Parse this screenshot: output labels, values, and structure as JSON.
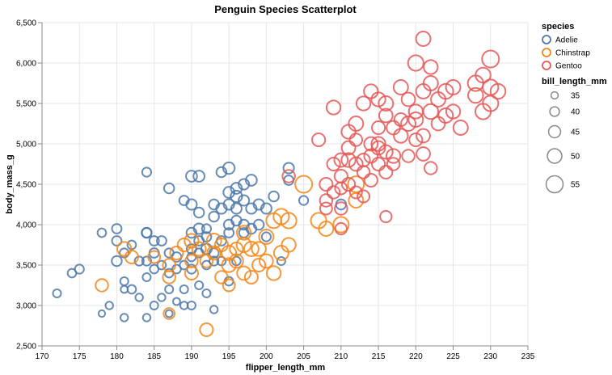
{
  "chart_data": {
    "type": "scatter",
    "title": "Penguin Species Scatterplot",
    "xlabel": "flipper_length_mm",
    "ylabel": "body_mass_g",
    "xlim": [
      170,
      235
    ],
    "ylim": [
      2500,
      6500
    ],
    "x_ticks": [
      170,
      175,
      180,
      185,
      190,
      195,
      200,
      205,
      210,
      215,
      220,
      225,
      230,
      235
    ],
    "y_ticks": [
      2500,
      3000,
      3500,
      4000,
      4500,
      5000,
      5500,
      6000,
      6500
    ],
    "y_tick_labels": [
      "2,500",
      "3,000",
      "3,500",
      "4,000",
      "4,500",
      "5,000",
      "5,500",
      "6,000",
      "6,500"
    ],
    "grid": true,
    "legend": {
      "placement": "right",
      "color_title": "species",
      "size_title": "bill_length_mm",
      "size_values": [
        35,
        40,
        45,
        50,
        55
      ]
    },
    "size_domain": [
      32,
      60
    ],
    "series": [
      {
        "name": "Adelie",
        "color": "#4c78a8",
        "points": [
          [
            172,
            3150,
            37
          ],
          [
            174,
            3400,
            38
          ],
          [
            175,
            3450,
            39
          ],
          [
            178,
            3900,
            38
          ],
          [
            178,
            2900,
            34
          ],
          [
            179,
            3000,
            36
          ],
          [
            180,
            3950,
            40
          ],
          [
            180,
            3550,
            41
          ],
          [
            180,
            3800,
            40
          ],
          [
            181,
            3650,
            39
          ],
          [
            181,
            3300,
            37
          ],
          [
            181,
            3200,
            35
          ],
          [
            181,
            2850,
            36
          ],
          [
            182,
            3750,
            38
          ],
          [
            182,
            3200,
            38
          ],
          [
            183,
            3550,
            39
          ],
          [
            183,
            3100,
            36
          ],
          [
            184,
            3900,
            40
          ],
          [
            184,
            3900,
            41
          ],
          [
            184,
            4650,
            39
          ],
          [
            184,
            3550,
            39
          ],
          [
            184,
            3350,
            37
          ],
          [
            184,
            2850,
            36
          ],
          [
            185,
            3800,
            40
          ],
          [
            185,
            3650,
            40
          ],
          [
            185,
            3450,
            38
          ],
          [
            185,
            3000,
            37
          ],
          [
            186,
            3800,
            40
          ],
          [
            186,
            3500,
            38
          ],
          [
            186,
            3100,
            36
          ],
          [
            187,
            3650,
            39
          ],
          [
            187,
            4450,
            41
          ],
          [
            187,
            3400,
            38
          ],
          [
            187,
            3200,
            37
          ],
          [
            187,
            2900,
            35
          ],
          [
            188,
            3600,
            40
          ],
          [
            188,
            3450,
            38
          ],
          [
            188,
            3050,
            35
          ],
          [
            189,
            3500,
            38
          ],
          [
            189,
            3200,
            37
          ],
          [
            189,
            3000,
            36
          ],
          [
            189,
            4300,
            40
          ],
          [
            190,
            3900,
            41
          ],
          [
            190,
            3700,
            40
          ],
          [
            190,
            3450,
            39
          ],
          [
            190,
            4600,
            43
          ],
          [
            190,
            4250,
            42
          ],
          [
            190,
            3600,
            38
          ],
          [
            190,
            3000,
            37
          ],
          [
            191,
            3800,
            40
          ],
          [
            191,
            3950,
            42
          ],
          [
            191,
            3650,
            39
          ],
          [
            191,
            3250,
            37
          ],
          [
            191,
            4150,
            41
          ],
          [
            191,
            4600,
            43
          ],
          [
            192,
            3950,
            39
          ],
          [
            192,
            3850,
            40
          ],
          [
            192,
            3500,
            38
          ],
          [
            192,
            3150,
            37
          ],
          [
            192,
            3700,
            42
          ],
          [
            193,
            3550,
            39
          ],
          [
            193,
            3650,
            40
          ],
          [
            193,
            2950,
            36
          ],
          [
            193,
            4100,
            41
          ],
          [
            193,
            4250,
            41
          ],
          [
            194,
            4200,
            42
          ],
          [
            194,
            3800,
            40
          ],
          [
            194,
            3550,
            38
          ],
          [
            194,
            4650,
            41
          ],
          [
            195,
            4400,
            43
          ],
          [
            195,
            4000,
            41
          ],
          [
            195,
            3300,
            38
          ],
          [
            195,
            4700,
            44
          ],
          [
            195,
            4250,
            42
          ],
          [
            195,
            3900,
            40
          ],
          [
            196,
            4350,
            44
          ],
          [
            196,
            4450,
            43
          ],
          [
            196,
            4050,
            41
          ],
          [
            196,
            3550,
            38
          ],
          [
            196,
            4200,
            42
          ],
          [
            197,
            4300,
            42
          ],
          [
            197,
            3900,
            40
          ],
          [
            197,
            4500,
            42
          ],
          [
            197,
            4000,
            41
          ],
          [
            198,
            3950,
            41
          ],
          [
            198,
            4550,
            43
          ],
          [
            198,
            4200,
            42
          ],
          [
            199,
            4000,
            41
          ],
          [
            199,
            4250,
            42
          ],
          [
            200,
            4200,
            42
          ],
          [
            200,
            3850,
            39
          ],
          [
            201,
            4350,
            41
          ],
          [
            202,
            3550,
            37
          ],
          [
            203,
            4700,
            42
          ],
          [
            203,
            4550,
            40
          ],
          [
            205,
            4300,
            39
          ],
          [
            210,
            4250,
            41
          ]
        ]
      },
      {
        "name": "Chinstrap",
        "color": "#f58518",
        "points": [
          [
            178,
            3250,
            46
          ],
          [
            181,
            3700,
            49
          ],
          [
            182,
            3600,
            47
          ],
          [
            185,
            3600,
            45
          ],
          [
            187,
            3500,
            46
          ],
          [
            187,
            2900,
            43
          ],
          [
            187,
            3350,
            46
          ],
          [
            188,
            3650,
            47
          ],
          [
            189,
            3750,
            47
          ],
          [
            190,
            3400,
            47
          ],
          [
            190,
            3800,
            49
          ],
          [
            190,
            3550,
            46
          ],
          [
            191,
            3700,
            48
          ],
          [
            192,
            2700,
            47
          ],
          [
            192,
            3550,
            46
          ],
          [
            193,
            3800,
            50
          ],
          [
            193,
            3650,
            48
          ],
          [
            194,
            3750,
            47
          ],
          [
            194,
            3350,
            46
          ],
          [
            195,
            3650,
            50
          ],
          [
            195,
            3500,
            49
          ],
          [
            195,
            3250,
            45
          ],
          [
            196,
            3550,
            48
          ],
          [
            196,
            3700,
            47
          ],
          [
            197,
            3750,
            50
          ],
          [
            197,
            3400,
            48
          ],
          [
            197,
            3900,
            49
          ],
          [
            198,
            3700,
            50
          ],
          [
            198,
            3350,
            47
          ],
          [
            199,
            3700,
            49
          ],
          [
            199,
            3500,
            47
          ],
          [
            200,
            3850,
            50
          ],
          [
            200,
            3550,
            48
          ],
          [
            201,
            4050,
            51
          ],
          [
            201,
            3400,
            49
          ],
          [
            202,
            3650,
            50
          ],
          [
            202,
            4100,
            52
          ],
          [
            203,
            4050,
            52
          ],
          [
            203,
            3750,
            49
          ],
          [
            205,
            4500,
            55
          ],
          [
            207,
            4050,
            52
          ],
          [
            208,
            3950,
            50
          ],
          [
            210,
            4000,
            52
          ],
          [
            212,
            4300,
            50
          ],
          [
            212,
            4500,
            53
          ]
        ]
      },
      {
        "name": "Gentoo",
        "color": "#e45756",
        "points": [
          [
            203,
            4600,
            46
          ],
          [
            207,
            5050,
            47
          ],
          [
            208,
            4500,
            47
          ],
          [
            208,
            4300,
            46
          ],
          [
            208,
            4200,
            45
          ],
          [
            209,
            5450,
            49
          ],
          [
            209,
            4400,
            46
          ],
          [
            209,
            4750,
            47
          ],
          [
            210,
            4800,
            48
          ],
          [
            210,
            4600,
            47
          ],
          [
            210,
            4200,
            46
          ],
          [
            210,
            4450,
            45
          ],
          [
            210,
            3950,
            44
          ],
          [
            211,
            4500,
            47
          ],
          [
            211,
            4800,
            49
          ],
          [
            211,
            4950,
            48
          ],
          [
            211,
            5150,
            49
          ],
          [
            212,
            4750,
            48
          ],
          [
            212,
            4400,
            45
          ],
          [
            212,
            5050,
            46
          ],
          [
            212,
            5250,
            50
          ],
          [
            213,
            4800,
            47
          ],
          [
            213,
            4650,
            46
          ],
          [
            213,
            5500,
            49
          ],
          [
            213,
            4350,
            45
          ],
          [
            214,
            4850,
            48
          ],
          [
            214,
            5000,
            48
          ],
          [
            214,
            4550,
            47
          ],
          [
            214,
            5650,
            49
          ],
          [
            215,
            4750,
            47
          ],
          [
            215,
            5000,
            49
          ],
          [
            215,
            5200,
            47
          ],
          [
            215,
            5550,
            49
          ],
          [
            215,
            4950,
            48
          ],
          [
            216,
            4650,
            47
          ],
          [
            216,
            5500,
            50
          ],
          [
            216,
            4100,
            44
          ],
          [
            216,
            5350,
            48
          ],
          [
            216,
            4900,
            48
          ],
          [
            217,
            4850,
            49
          ],
          [
            217,
            5200,
            48
          ],
          [
            217,
            4750,
            46
          ],
          [
            218,
            5700,
            50
          ],
          [
            218,
            5100,
            49
          ],
          [
            218,
            5300,
            47
          ],
          [
            219,
            5250,
            50
          ],
          [
            219,
            4850,
            46
          ],
          [
            219,
            5550,
            48
          ],
          [
            220,
            6000,
            52
          ],
          [
            220,
            5300,
            50
          ],
          [
            220,
            5050,
            47
          ],
          [
            220,
            5400,
            49
          ],
          [
            221,
            6300,
            50
          ],
          [
            221,
            5650,
            50
          ],
          [
            221,
            5100,
            48
          ],
          [
            221,
            4875,
            48
          ],
          [
            222,
            5750,
            50
          ],
          [
            222,
            5400,
            51
          ],
          [
            222,
            5950,
            49
          ],
          [
            222,
            4700,
            46
          ],
          [
            223,
            5550,
            50
          ],
          [
            223,
            5250,
            48
          ],
          [
            224,
            5650,
            51
          ],
          [
            224,
            5350,
            50
          ],
          [
            225,
            5700,
            50
          ],
          [
            225,
            5400,
            49
          ],
          [
            226,
            5200,
            50
          ],
          [
            228,
            5750,
            52
          ],
          [
            228,
            5600,
            51
          ],
          [
            229,
            5400,
            52
          ],
          [
            229,
            5850,
            51
          ],
          [
            230,
            6050,
            55
          ],
          [
            230,
            5700,
            52
          ],
          [
            230,
            5500,
            52
          ],
          [
            231,
            5650,
            51
          ]
        ]
      }
    ]
  }
}
